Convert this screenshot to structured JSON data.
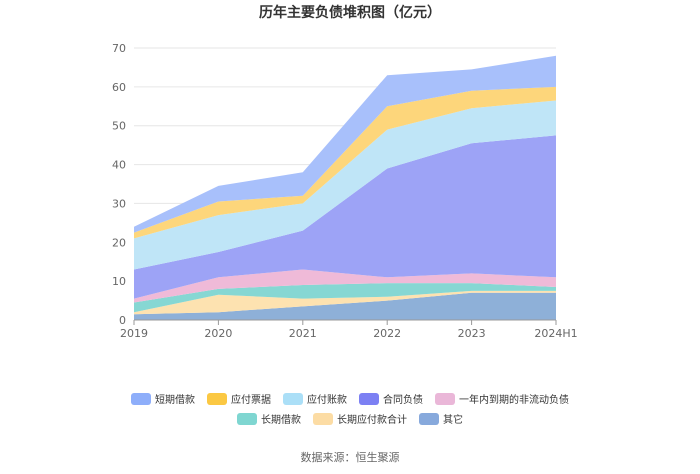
{
  "chart_data": {
    "type": "area",
    "stacked": true,
    "title": "历年主要负债堆积图（亿元）",
    "x": [
      "2019",
      "2020",
      "2021",
      "2022",
      "2023",
      "2024H1"
    ],
    "ylim": [
      0,
      70
    ],
    "yticks": [
      0,
      10,
      20,
      30,
      40,
      50,
      60,
      70
    ],
    "grid": true,
    "legend_position": "bottom",
    "series": [
      {
        "name": "其它",
        "color": "#8eb0d8",
        "values": [
          1.5,
          2.0,
          3.5,
          5.0,
          7.0,
          7.0
        ]
      },
      {
        "name": "长期应付款合计",
        "color": "#fde2b0",
        "values": [
          0.5,
          4.5,
          2.0,
          1.0,
          0.5,
          0.5
        ]
      },
      {
        "name": "长期借款",
        "color": "#86d7d3",
        "values": [
          2.5,
          1.5,
          3.5,
          3.5,
          2.0,
          1.0
        ]
      },
      {
        "name": "一年内到期的非流动负债",
        "color": "#efbad8",
        "values": [
          1.0,
          3.0,
          4.0,
          1.5,
          2.5,
          2.5
        ]
      },
      {
        "name": "合同负债",
        "color": "#9da3f6",
        "values": [
          7.5,
          6.5,
          10.0,
          28.0,
          33.5,
          36.5
        ]
      },
      {
        "name": "应付账款",
        "color": "#bfe5f7",
        "values": [
          8.0,
          9.5,
          7.0,
          10.0,
          9.0,
          9.0
        ]
      },
      {
        "name": "应付票据",
        "color": "#fdd67b",
        "values": [
          1.5,
          3.5,
          2.0,
          6.0,
          4.5,
          3.5
        ]
      },
      {
        "name": "短期借款",
        "color": "#a8c0fb",
        "values": [
          1.5,
          4.0,
          6.0,
          8.0,
          5.5,
          8.0
        ]
      }
    ]
  },
  "legend_rows": [
    [
      {
        "label": "短期借款",
        "color": "#8eaefa"
      },
      {
        "label": "应付票据",
        "color": "#fbc843"
      },
      {
        "label": "应付账款",
        "color": "#abdff7"
      },
      {
        "label": "合同负债",
        "color": "#7c80f3"
      },
      {
        "label": "一年内到期的非流动负债",
        "color": "#eab7d8"
      }
    ],
    [
      {
        "label": "长期借款",
        "color": "#7fd6d1"
      },
      {
        "label": "长期应付款合计",
        "color": "#fcdca4"
      },
      {
        "label": "其它",
        "color": "#87a9dc"
      }
    ]
  ],
  "source": "数据来源：恒生聚源"
}
